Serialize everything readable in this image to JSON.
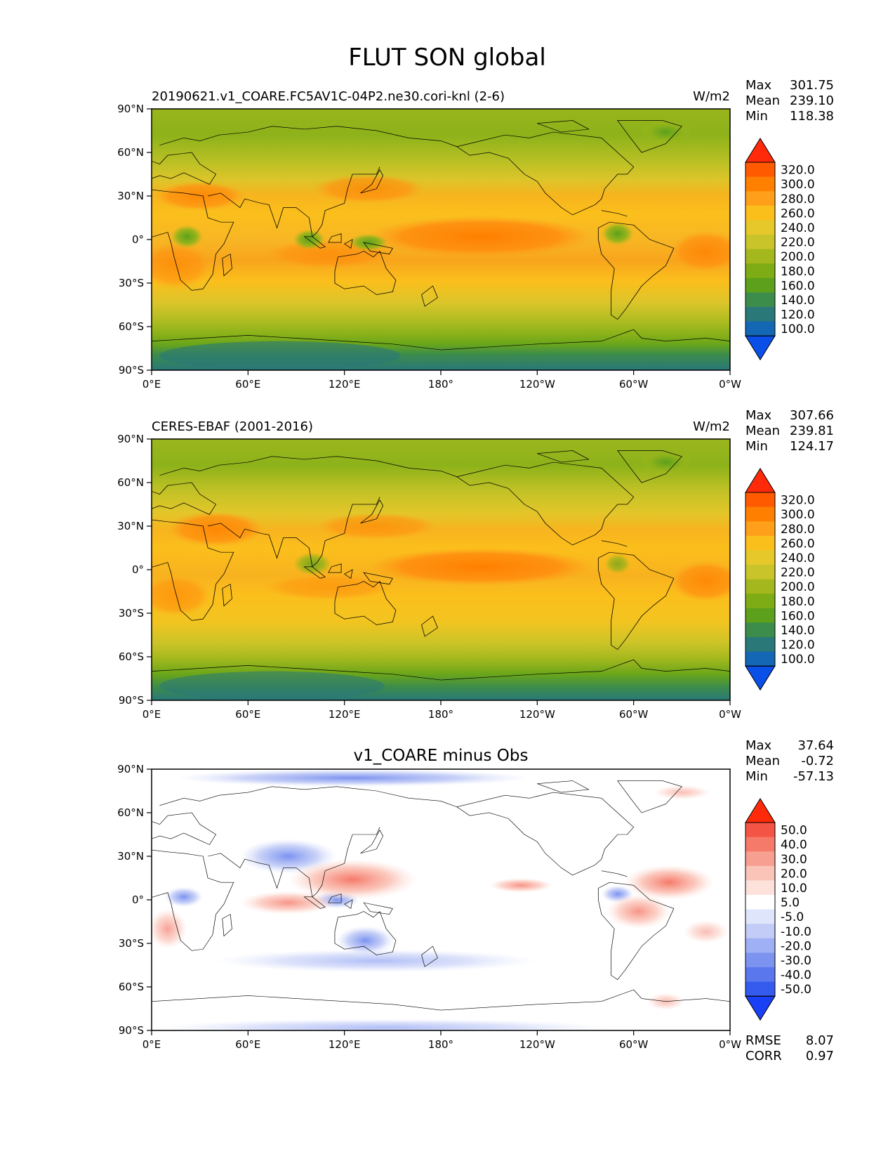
{
  "page_title": "FLUT SON global",
  "longitude_ticks": [
    "0°E",
    "60°E",
    "120°E",
    "180°",
    "120°W",
    "60°W",
    "0°W"
  ],
  "latitude_ticks": [
    "90°N",
    "60°N",
    "30°N",
    "0°",
    "30°S",
    "60°S",
    "90°S"
  ],
  "panels": [
    {
      "title": "20190621.v1_COARE.FC5AV1C-04P2.ne30.cori-knl (2-6)",
      "units": "W/m2",
      "stats": [
        {
          "label": "Max",
          "value": "301.75"
        },
        {
          "label": "Mean",
          "value": "239.10"
        },
        {
          "label": "Min",
          "value": "118.38"
        }
      ],
      "colorbar": {
        "levels": [
          "320.0",
          "300.0",
          "280.0",
          "260.0",
          "240.0",
          "220.0",
          "200.0",
          "180.0",
          "160.0",
          "140.0",
          "120.0",
          "100.0"
        ],
        "colors": [
          "#ff2a0a",
          "#ff5a00",
          "#ff7f00",
          "#ff9f1a",
          "#fbbf1c",
          "#e6c82a",
          "#c8c42a",
          "#a4b81e",
          "#7eac14",
          "#5ca01c",
          "#3c8c4c",
          "#2a7878",
          "#1467b4",
          "#0a50e8"
        ]
      }
    },
    {
      "title": "CERES-EBAF (2001-2016)",
      "units": "W/m2",
      "stats": [
        {
          "label": "Max",
          "value": "307.66"
        },
        {
          "label": "Mean",
          "value": "239.81"
        },
        {
          "label": "Min",
          "value": "124.17"
        }
      ],
      "colorbar": {
        "levels": [
          "320.0",
          "300.0",
          "280.0",
          "260.0",
          "240.0",
          "220.0",
          "200.0",
          "180.0",
          "160.0",
          "140.0",
          "120.0",
          "100.0"
        ],
        "colors": [
          "#ff2a0a",
          "#ff5a00",
          "#ff7f00",
          "#ff9f1a",
          "#fbbf1c",
          "#e6c82a",
          "#c8c42a",
          "#a4b81e",
          "#7eac14",
          "#5ca01c",
          "#3c8c4c",
          "#2a7878",
          "#1467b4",
          "#0a50e8"
        ]
      }
    },
    {
      "title": "v1_COARE minus Obs",
      "units": "",
      "stats": [
        {
          "label": "Max",
          "value": "37.64"
        },
        {
          "label": "Mean",
          "value": "-0.72"
        },
        {
          "label": "Min",
          "value": "-57.13"
        }
      ],
      "colorbar": {
        "levels": [
          "50.0",
          "40.0",
          "30.0",
          "20.0",
          "10.0",
          "5.0",
          "-5.0",
          "-10.0",
          "-20.0",
          "-30.0",
          "-40.0",
          "-50.0"
        ],
        "colors": [
          "#ff2a0a",
          "#f45444",
          "#f57a6a",
          "#f7a092",
          "#fbc4b8",
          "#fde2dc",
          "#ffffff",
          "#dfe5fb",
          "#c2ccf7",
          "#9fb0f4",
          "#7c93f0",
          "#5a77ee",
          "#355bee",
          "#1a40f5"
        ]
      },
      "footer_stats": [
        {
          "label": "RMSE",
          "value": "8.07"
        },
        {
          "label": "CORR",
          "value": "0.97"
        }
      ]
    }
  ],
  "map_palette": {
    "continent_line": "#000000"
  }
}
